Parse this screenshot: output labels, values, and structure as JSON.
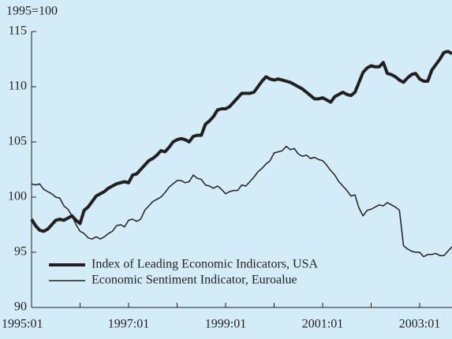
{
  "chart_data": {
    "type": "line",
    "ylabel": "1995=100",
    "x": [
      "1995:01",
      "1995:02",
      "1995:03",
      "1995:04",
      "1995:05",
      "1995:06",
      "1995:07",
      "1995:08",
      "1995:09",
      "1995:10",
      "1995:11",
      "1995:12",
      "1996:01",
      "1996:02",
      "1996:03",
      "1996:04",
      "1996:05",
      "1996:06",
      "1996:07",
      "1996:08",
      "1996:09",
      "1996:10",
      "1996:11",
      "1996:12",
      "1997:01",
      "1997:02",
      "1997:03",
      "1997:04",
      "1997:05",
      "1997:06",
      "1997:07",
      "1997:08",
      "1997:09",
      "1997:10",
      "1997:11",
      "1997:12",
      "1998:01",
      "1998:02",
      "1998:03",
      "1998:04",
      "1998:05",
      "1998:06",
      "1998:07",
      "1998:08",
      "1998:09",
      "1998:10",
      "1998:11",
      "1998:12",
      "1999:01",
      "1999:02",
      "1999:03",
      "1999:04",
      "1999:05",
      "1999:06",
      "1999:07",
      "1999:08",
      "1999:09",
      "1999:10",
      "1999:11",
      "1999:12",
      "2000:01",
      "2000:02",
      "2000:03",
      "2000:04",
      "2000:05",
      "2000:06",
      "2000:07",
      "2000:08",
      "2000:09",
      "2000:10",
      "2000:11",
      "2000:12",
      "2001:01",
      "2001:02",
      "2001:03",
      "2001:04",
      "2001:05",
      "2001:06",
      "2001:07",
      "2001:08",
      "2001:09",
      "2001:10",
      "2001:11",
      "2001:12",
      "2002:01",
      "2002:02",
      "2002:03",
      "2002:04",
      "2002:05",
      "2002:06",
      "2002:07",
      "2002:08",
      "2002:09",
      "2002:10",
      "2002:11",
      "2002:12",
      "2003:01",
      "2003:02",
      "2003:03",
      "2003:04",
      "2003:05",
      "2003:06",
      "2003:07",
      "2003:08",
      "2003:09"
    ],
    "series": [
      {
        "name": "Index of Leading Economic Indicators, USA",
        "color": "#231f20",
        "width": 4,
        "values": [
          98.0,
          97.4,
          97.0,
          96.9,
          97.1,
          97.5,
          97.9,
          98.0,
          97.9,
          98.1,
          98.3,
          97.9,
          97.6,
          98.8,
          99.1,
          99.6,
          100.1,
          100.3,
          100.5,
          100.8,
          101.0,
          101.2,
          101.3,
          101.4,
          101.3,
          102.0,
          102.1,
          102.5,
          102.9,
          103.3,
          103.5,
          103.8,
          104.2,
          104.1,
          104.5,
          105.0,
          105.2,
          105.3,
          105.2,
          105.0,
          105.5,
          105.6,
          105.6,
          106.6,
          106.9,
          107.3,
          107.9,
          108.0,
          108.0,
          108.2,
          108.6,
          109.0,
          109.4,
          109.4,
          109.4,
          109.5,
          110.0,
          110.5,
          110.9,
          110.7,
          110.6,
          110.7,
          110.6,
          110.5,
          110.4,
          110.2,
          110.0,
          109.8,
          109.5,
          109.2,
          108.9,
          108.9,
          109.0,
          108.8,
          108.6,
          109.1,
          109.3,
          109.5,
          109.3,
          109.2,
          109.5,
          110.4,
          111.3,
          111.7,
          111.9,
          111.8,
          111.8,
          112.2,
          111.2,
          111.1,
          110.9,
          110.6,
          110.4,
          110.8,
          111.1,
          111.2,
          110.7,
          110.5,
          110.5,
          111.5,
          112.0,
          112.5,
          113.1,
          113.2,
          113.0
        ]
      },
      {
        "name": "Economic Sentiment Indicator, Euroalue",
        "color": "#231f20",
        "width": 1.5,
        "values": [
          101.2,
          101.1,
          101.2,
          100.7,
          100.5,
          100.3,
          100.0,
          99.9,
          99.2,
          98.9,
          98.3,
          97.5,
          96.9,
          96.7,
          96.3,
          96.2,
          96.4,
          96.2,
          96.4,
          96.7,
          96.9,
          97.4,
          97.5,
          97.3,
          97.9,
          98.0,
          97.8,
          98.0,
          98.8,
          99.2,
          99.6,
          99.8,
          100.0,
          100.4,
          100.9,
          101.2,
          101.5,
          101.5,
          101.3,
          101.4,
          102.0,
          101.7,
          101.6,
          101.1,
          101.0,
          100.8,
          101.0,
          100.7,
          100.3,
          100.5,
          100.6,
          100.6,
          101.1,
          101.0,
          101.4,
          101.8,
          102.3,
          102.6,
          103.0,
          103.3,
          104.0,
          104.1,
          104.2,
          104.6,
          104.3,
          104.4,
          103.9,
          103.7,
          103.8,
          103.5,
          103.6,
          103.4,
          103.3,
          102.9,
          102.4,
          102.0,
          101.4,
          101.0,
          100.6,
          100.1,
          100.2,
          99.0,
          98.3,
          98.8,
          98.9,
          99.1,
          99.3,
          99.2,
          99.5,
          99.3,
          99.1,
          98.8,
          95.6,
          95.3,
          95.1,
          95.0,
          95.0,
          94.6,
          94.8,
          94.8,
          94.9,
          94.7,
          94.7,
          95.1,
          95.5
        ]
      }
    ],
    "ylim": [
      90,
      115
    ],
    "yticks": [
      90,
      95,
      100,
      105,
      110,
      115
    ],
    "xticks": [
      "1995:01",
      "1997:01",
      "1999:01",
      "2001:01",
      "2003:01"
    ],
    "legend": "lower left",
    "background": "#d3ecf8"
  }
}
